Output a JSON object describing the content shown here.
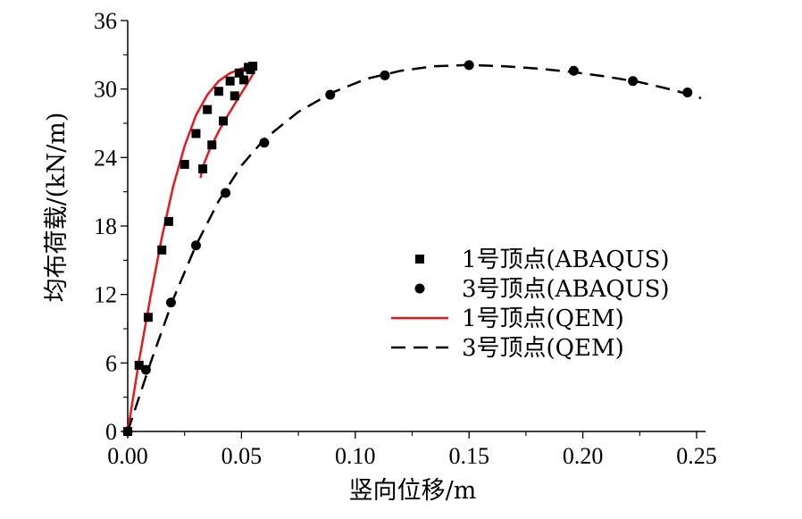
{
  "chart_data": {
    "type": "line",
    "xlabel": "竖向位移/m",
    "ylabel": "均布荷载/(kN/m)",
    "xlim": [
      0,
      0.25
    ],
    "ylim": [
      0,
      36
    ],
    "xticks": [
      "0.00",
      "0.05",
      "0.10",
      "0.15",
      "0.20",
      "0.25"
    ],
    "yticks": [
      "0",
      "6",
      "12",
      "18",
      "24",
      "30",
      "36"
    ],
    "grid": false,
    "legend_position": "center-right",
    "series": [
      {
        "name": "1号顶点(ABAQUS)",
        "kind": "scatter",
        "marker": "square",
        "color": "#000000",
        "x": [
          0.0,
          0.005,
          0.009,
          0.015,
          0.018,
          0.025,
          0.03,
          0.035,
          0.04,
          0.045,
          0.049,
          0.053,
          0.055,
          0.054,
          0.051,
          0.047,
          0.042,
          0.037,
          0.033
        ],
        "y": [
          0.0,
          5.8,
          10.0,
          15.9,
          18.4,
          23.4,
          26.1,
          28.2,
          29.8,
          30.7,
          31.4,
          31.9,
          32.0,
          31.7,
          30.8,
          29.4,
          27.2,
          25.1,
          23.0
        ]
      },
      {
        "name": "3号顶点(ABAQUS)",
        "kind": "scatter",
        "marker": "circle",
        "color": "#000000",
        "x": [
          0.0,
          0.008,
          0.019,
          0.03,
          0.043,
          0.06,
          0.089,
          0.113,
          0.15,
          0.196,
          0.222,
          0.246
        ],
        "y": [
          0.0,
          5.4,
          11.3,
          16.3,
          20.9,
          25.3,
          29.5,
          31.2,
          32.1,
          31.6,
          30.7,
          29.7
        ]
      },
      {
        "name": "1号顶点(QEM)",
        "kind": "line",
        "style": "solid",
        "color": "#e8191c",
        "x": [
          0.0,
          0.005,
          0.01,
          0.015,
          0.02,
          0.025,
          0.03,
          0.035,
          0.04,
          0.045,
          0.05,
          0.054,
          0.056,
          0.055,
          0.052,
          0.048,
          0.044,
          0.04,
          0.036,
          0.033,
          0.032
        ],
        "y": [
          0.0,
          6.2,
          11.8,
          17.0,
          21.5,
          25.0,
          27.7,
          29.5,
          30.7,
          31.4,
          31.8,
          32.0,
          31.9,
          31.3,
          30.3,
          29.0,
          27.7,
          26.3,
          24.7,
          23.2,
          22.2
        ]
      },
      {
        "name": "3号顶点(QEM)",
        "kind": "line",
        "style": "dashed",
        "color": "#000000",
        "x": [
          0.0,
          0.01,
          0.02,
          0.03,
          0.04,
          0.05,
          0.06,
          0.075,
          0.09,
          0.105,
          0.12,
          0.135,
          0.15,
          0.165,
          0.18,
          0.195,
          0.21,
          0.225,
          0.24,
          0.252
        ],
        "y": [
          0.0,
          6.0,
          11.6,
          16.3,
          20.2,
          23.3,
          25.6,
          28.0,
          29.7,
          30.9,
          31.6,
          32.0,
          32.1,
          32.0,
          31.8,
          31.5,
          31.1,
          30.6,
          29.9,
          29.2
        ]
      }
    ]
  }
}
